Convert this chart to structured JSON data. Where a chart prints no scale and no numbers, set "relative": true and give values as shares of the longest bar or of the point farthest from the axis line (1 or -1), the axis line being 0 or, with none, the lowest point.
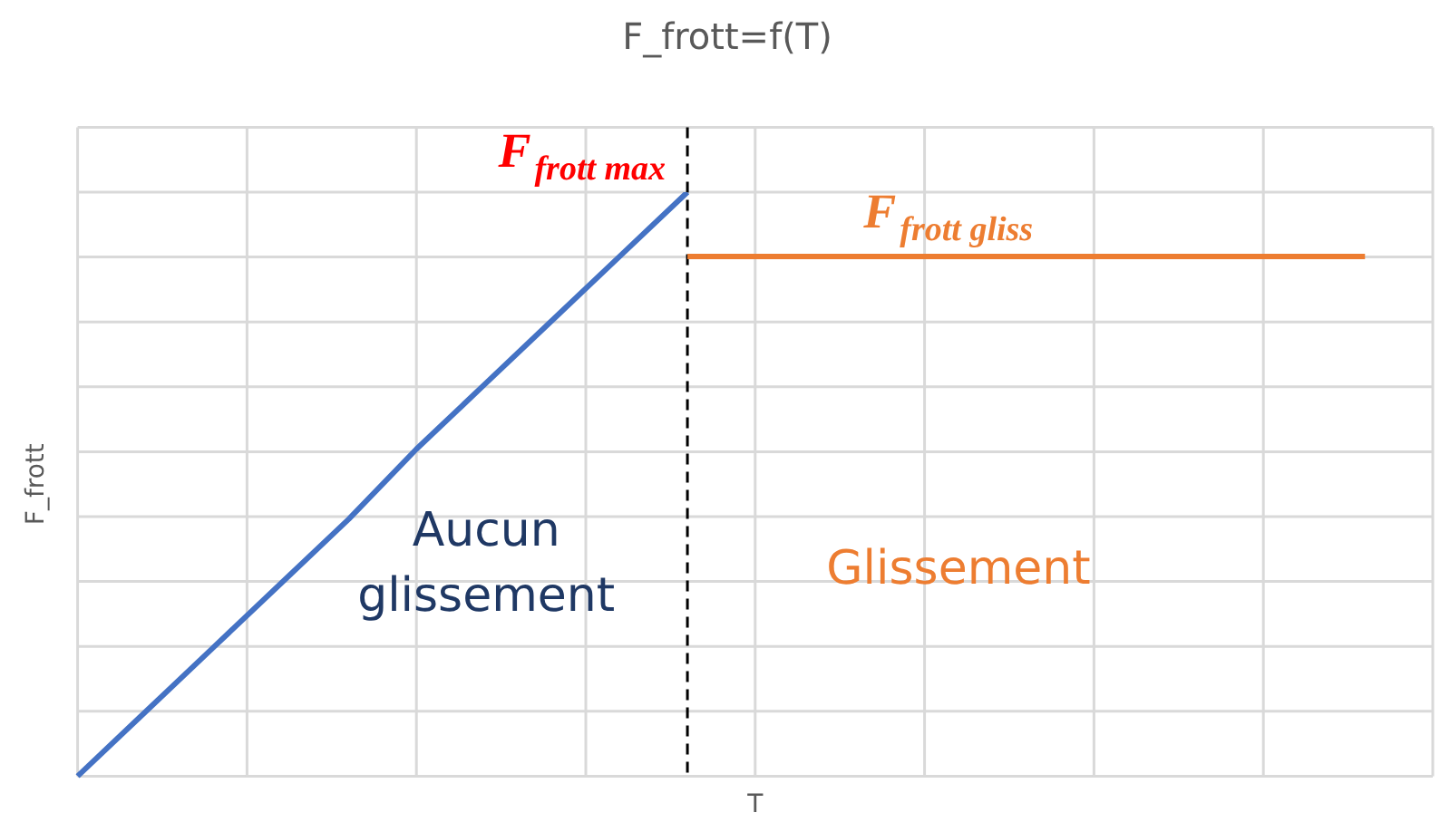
{
  "chart_data": {
    "type": "line",
    "title": "F_frott=f(T)",
    "xlabel": "T",
    "ylabel": "F_frott",
    "relative": true,
    "grid": true,
    "marker": "none",
    "line_style": "solid",
    "categories": [
      null,
      null,
      null,
      null,
      null,
      null,
      null,
      null,
      null,
      null,
      null,
      null,
      null,
      null,
      null,
      null,
      null,
      null,
      null,
      null,
      null
    ],
    "series": [
      {
        "color": "#4472c4",
        "values": [
          0,
          0.11,
          0.22,
          0.33,
          0.44,
          0.56,
          0.67,
          0.78,
          0.89,
          1,
          null,
          null,
          null,
          null,
          null,
          null,
          null,
          null,
          null,
          null,
          null
        ]
      },
      {
        "color": "#ed7d31",
        "values": [
          null,
          null,
          null,
          null,
          null,
          null,
          null,
          null,
          null,
          0.89,
          0.89,
          0.89,
          0.89,
          0.89,
          0.89,
          0.89,
          0.89,
          0.89,
          0.89,
          0.89,
          null
        ]
      }
    ],
    "ref_lines": [
      {
        "axis": "x",
        "color": "#000000",
        "line_style": "dashed"
      }
    ],
    "annotations": [
      "F$_{frott max}$",
      "F$_{frott gliss}$",
      "Aucun glissement",
      "Glissement"
    ]
  }
}
